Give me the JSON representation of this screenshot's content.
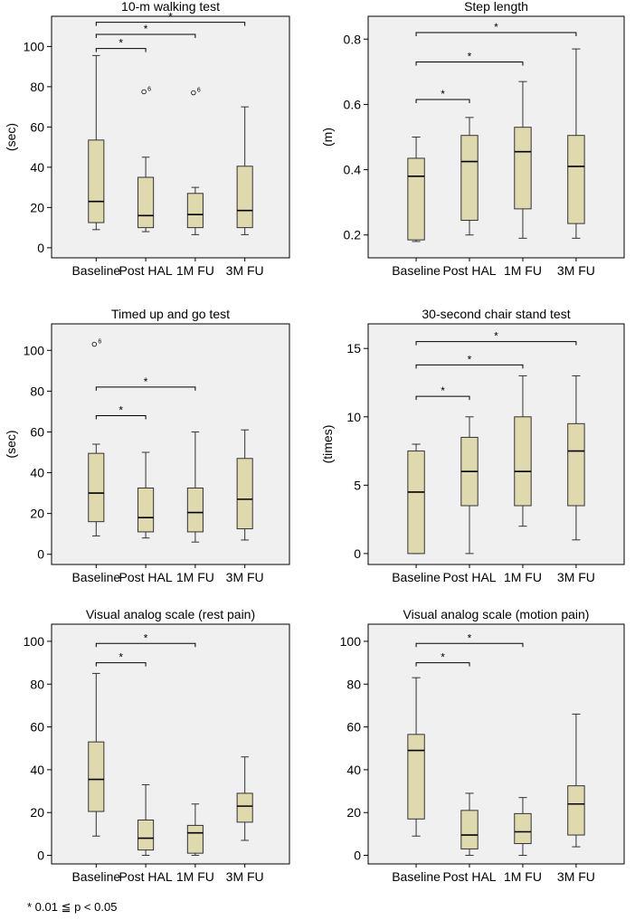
{
  "chart_data": [
    {
      "type": "box",
      "title": "10-m walking test",
      "ylabel": "(sec)",
      "xlabel": "",
      "ylim": [
        -5,
        115
      ],
      "yticks": [
        0,
        20,
        40,
        60,
        80,
        100
      ],
      "categories": [
        "Baseline",
        "Post HAL",
        "1M FU",
        "3M FU"
      ],
      "boxes": [
        {
          "min": 9,
          "q1": 12.5,
          "median": 23,
          "q3": 53.5,
          "max": 95.5
        },
        {
          "min": 8,
          "q1": 10,
          "median": 16,
          "q3": 35,
          "max": 45
        },
        {
          "min": 6.5,
          "q1": 10,
          "median": 16.5,
          "q3": 27,
          "max": 30
        },
        {
          "min": 6.5,
          "q1": 10,
          "median": 18.5,
          "q3": 40.5,
          "max": 70
        }
      ],
      "outliers": [
        {
          "category": 1,
          "value": 77.5,
          "label": "6"
        },
        {
          "category": 2,
          "value": 77,
          "label": "6"
        }
      ],
      "significance": [
        {
          "from": 0,
          "to": 1,
          "y": 99,
          "label": "*"
        },
        {
          "from": 0,
          "to": 2,
          "y": 106,
          "label": "*"
        },
        {
          "from": 0,
          "to": 3,
          "y": 112,
          "label": "*"
        }
      ]
    },
    {
      "type": "box",
      "title": "Step length",
      "ylabel": "(m)",
      "xlabel": "",
      "ylim": [
        0.13,
        0.87
      ],
      "yticks": [
        0.2,
        0.4,
        0.6,
        0.8
      ],
      "categories": [
        "Baseline",
        "Post HAL",
        "1M FU",
        "3M FU"
      ],
      "boxes": [
        {
          "min": 0.18,
          "q1": 0.185,
          "median": 0.38,
          "q3": 0.435,
          "max": 0.5
        },
        {
          "min": 0.2,
          "q1": 0.245,
          "median": 0.425,
          "q3": 0.505,
          "max": 0.56
        },
        {
          "min": 0.19,
          "q1": 0.28,
          "median": 0.455,
          "q3": 0.53,
          "max": 0.67
        },
        {
          "min": 0.19,
          "q1": 0.235,
          "median": 0.41,
          "q3": 0.505,
          "max": 0.77
        }
      ],
      "outliers": [],
      "significance": [
        {
          "from": 0,
          "to": 1,
          "y": 0.615,
          "label": "*"
        },
        {
          "from": 0,
          "to": 2,
          "y": 0.73,
          "label": "*"
        },
        {
          "from": 0,
          "to": 3,
          "y": 0.82,
          "label": "*"
        }
      ]
    },
    {
      "type": "box",
      "title": "Timed up and go test",
      "ylabel": "(sec)",
      "xlabel": "",
      "ylim": [
        -5,
        113
      ],
      "yticks": [
        0,
        20,
        40,
        60,
        80,
        100
      ],
      "categories": [
        "Baseline",
        "Post HAL",
        "1M FU",
        "3M FU"
      ],
      "boxes": [
        {
          "min": 9,
          "q1": 16,
          "median": 30,
          "q3": 49.5,
          "max": 54
        },
        {
          "min": 8,
          "q1": 11,
          "median": 18,
          "q3": 32.5,
          "max": 50
        },
        {
          "min": 6,
          "q1": 11,
          "median": 20.5,
          "q3": 32.5,
          "max": 60
        },
        {
          "min": 7,
          "q1": 12.5,
          "median": 27,
          "q3": 47,
          "max": 61
        }
      ],
      "outliers": [
        {
          "category": 0,
          "value": 103,
          "label": "6"
        }
      ],
      "significance": [
        {
          "from": 0,
          "to": 1,
          "y": 68,
          "label": "*"
        },
        {
          "from": 0,
          "to": 2,
          "y": 82,
          "label": "*"
        }
      ]
    },
    {
      "type": "box",
      "title": "30-second chair stand test",
      "ylabel": "(times)",
      "xlabel": "",
      "ylim": [
        -0.8,
        16.8
      ],
      "yticks": [
        0,
        5,
        10,
        15
      ],
      "categories": [
        "Baseline",
        "Post HAL",
        "1M FU",
        "3M FU"
      ],
      "boxes": [
        {
          "min": 0,
          "q1": 0,
          "median": 4.5,
          "q3": 7.5,
          "max": 8
        },
        {
          "min": 0,
          "q1": 3.5,
          "median": 6,
          "q3": 8.5,
          "max": 10
        },
        {
          "min": 2,
          "q1": 3.5,
          "median": 6,
          "q3": 10,
          "max": 13
        },
        {
          "min": 1,
          "q1": 3.5,
          "median": 7.5,
          "q3": 9.5,
          "max": 13
        }
      ],
      "outliers": [],
      "significance": [
        {
          "from": 0,
          "to": 1,
          "y": 11.5,
          "label": "*"
        },
        {
          "from": 0,
          "to": 2,
          "y": 13.8,
          "label": "*"
        },
        {
          "from": 0,
          "to": 3,
          "y": 15.5,
          "label": "*"
        }
      ]
    },
    {
      "type": "box",
      "title": "Visual analog scale (rest pain)",
      "ylabel": "",
      "xlabel": "",
      "ylim": [
        -4,
        108
      ],
      "yticks": [
        0,
        20,
        40,
        60,
        80,
        100
      ],
      "categories": [
        "Baseline",
        "Post HAL",
        "1M FU",
        "3M FU"
      ],
      "boxes": [
        {
          "min": 9,
          "q1": 20.5,
          "median": 35.5,
          "q3": 53,
          "max": 85
        },
        {
          "min": 0,
          "q1": 2.5,
          "median": 8,
          "q3": 16.5,
          "max": 33
        },
        {
          "min": 0,
          "q1": 1,
          "median": 10.5,
          "q3": 14,
          "max": 24
        },
        {
          "min": 7,
          "q1": 15.5,
          "median": 23,
          "q3": 29,
          "max": 46
        }
      ],
      "outliers": [],
      "significance": [
        {
          "from": 0,
          "to": 1,
          "y": 90,
          "label": "*"
        },
        {
          "from": 0,
          "to": 2,
          "y": 99,
          "label": "*"
        }
      ]
    },
    {
      "type": "box",
      "title": "Visual analog scale (motion pain)",
      "ylabel": "",
      "xlabel": "",
      "ylim": [
        -4,
        108
      ],
      "yticks": [
        0,
        20,
        40,
        60,
        80,
        100
      ],
      "categories": [
        "Baseline",
        "Post HAL",
        "1M FU",
        "3M FU"
      ],
      "boxes": [
        {
          "min": 9,
          "q1": 17,
          "median": 49,
          "q3": 56.5,
          "max": 83
        },
        {
          "min": 0,
          "q1": 3,
          "median": 9.5,
          "q3": 21,
          "max": 29
        },
        {
          "min": 0,
          "q1": 5.5,
          "median": 11,
          "q3": 19.5,
          "max": 27
        },
        {
          "min": 4,
          "q1": 9.5,
          "median": 24,
          "q3": 32.5,
          "max": 66
        }
      ],
      "outliers": [],
      "significance": [
        {
          "from": 0,
          "to": 1,
          "y": 90,
          "label": "*"
        },
        {
          "from": 0,
          "to": 2,
          "y": 99,
          "label": "*"
        }
      ]
    }
  ],
  "footnote": "*  0.01 ≦ p < 0.05",
  "colors": {
    "plot_bg": "#f0f0f0",
    "box_fill": "#dfd9ae",
    "line": "#333333"
  }
}
